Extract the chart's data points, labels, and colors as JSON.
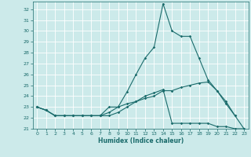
{
  "xlabel": "Humidex (Indice chaleur)",
  "background_color": "#cceaea",
  "grid_color": "#ffffff",
  "line_color": "#1a6b6b",
  "xlim": [
    -0.5,
    23.5
  ],
  "ylim": [
    21,
    32.7
  ],
  "yticks": [
    21,
    22,
    23,
    24,
    25,
    26,
    27,
    28,
    29,
    30,
    31,
    32
  ],
  "xticks": [
    0,
    1,
    2,
    3,
    4,
    5,
    6,
    7,
    8,
    9,
    10,
    11,
    12,
    13,
    14,
    15,
    16,
    17,
    18,
    19,
    20,
    21,
    22,
    23
  ],
  "x": [
    0,
    1,
    2,
    3,
    4,
    5,
    6,
    7,
    8,
    9,
    10,
    11,
    12,
    13,
    14,
    15,
    16,
    17,
    18,
    19,
    20,
    21,
    22,
    23
  ],
  "line1": [
    23.0,
    22.7,
    22.2,
    22.2,
    22.2,
    22.2,
    22.2,
    22.2,
    23.0,
    23.0,
    24.4,
    26.0,
    27.5,
    28.5,
    32.5,
    30.0,
    29.5,
    29.5,
    27.5,
    25.5,
    24.5,
    23.3,
    22.2,
    null
  ],
  "line2": [
    23.0,
    22.7,
    22.2,
    22.2,
    22.2,
    22.2,
    22.2,
    22.2,
    22.2,
    22.5,
    23.0,
    23.5,
    24.0,
    24.3,
    24.6,
    21.5,
    21.5,
    21.5,
    21.5,
    21.5,
    21.2,
    21.2,
    21.0,
    21.0
  ],
  "line3": [
    23.0,
    22.7,
    22.2,
    22.2,
    22.2,
    22.2,
    22.2,
    22.2,
    22.5,
    23.0,
    23.3,
    23.5,
    23.8,
    24.0,
    24.5,
    24.5,
    24.8,
    25.0,
    25.2,
    25.3,
    24.5,
    23.5,
    22.2,
    21.0
  ]
}
